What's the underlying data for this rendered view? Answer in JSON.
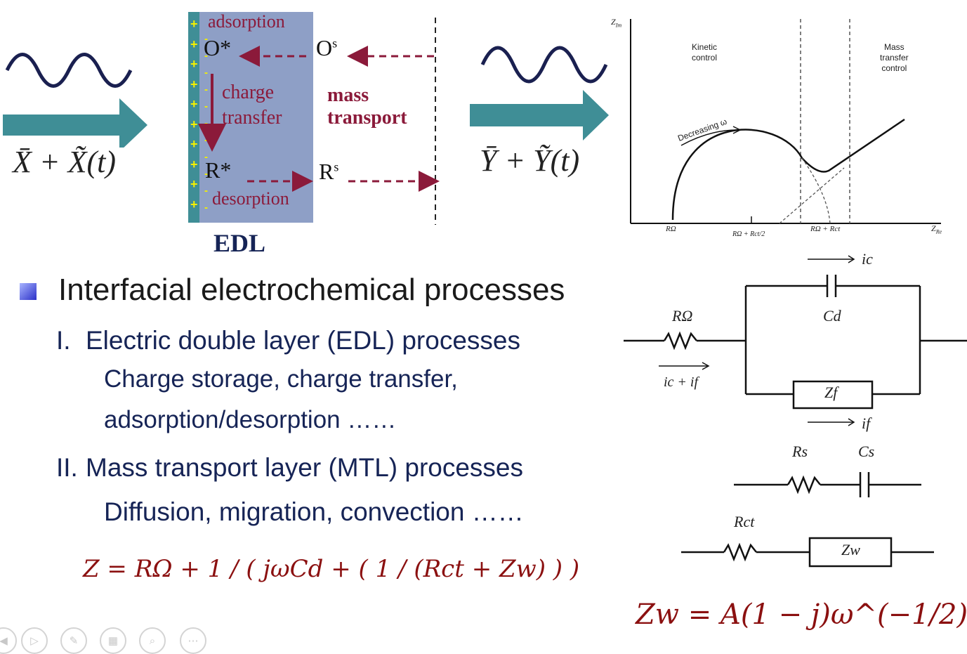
{
  "input_signal": {
    "label_html": "X̄ + X̃(t)"
  },
  "output_signal": {
    "label_html": "Ȳ + Ỹ(t)"
  },
  "edl": {
    "adsorption": "adsorption",
    "o_star": "O*",
    "o_s": "O",
    "o_s_sup": "s",
    "charge": "charge",
    "transfer": "transfer",
    "mass": "mass",
    "transport": "transport",
    "r_star": "R*",
    "r_s": "R",
    "r_s_sup": "s",
    "desorption": "desorption",
    "caption": "EDL",
    "colors": {
      "box": "#8e9fc6",
      "electrode": "#3f8e96",
      "text": "#8b1a3a"
    }
  },
  "nyquist": {
    "y_axis": "Z",
    "y_axis_sub": "Im",
    "x_axis": "Z",
    "x_axis_sub": "Re",
    "kinetic_line1": "Kinetic",
    "kinetic_line2": "control",
    "mass_line1": "Mass",
    "mass_line2": "transfer",
    "mass_line3": "control",
    "decreasing": "Decreasing ω",
    "tick_r_omega": "RΩ",
    "tick_mid": "RΩ + Rct/2",
    "tick_sum": "RΩ + Rct"
  },
  "bullets": {
    "main": "Interfacial electrochemical processes",
    "i_numeral": "I.",
    "i_title": "Electric double layer (EDL) processes",
    "i_line1": "Charge storage, charge transfer,",
    "i_line2": "adsorption/desorption ……",
    "ii_numeral": "II.",
    "ii_title": "Mass transport layer (MTL) processes",
    "ii_line1": "Diffusion, migration, convection ……"
  },
  "circuit": {
    "r_omega": "RΩ",
    "cd": "Cd",
    "zf": "Zf",
    "ic": "ic",
    "if": "if",
    "icf": "ic + if",
    "rs": "Rs",
    "cs": "Cs",
    "rct": "Rct",
    "zw": "Zw"
  },
  "equations": {
    "z_main": "Z = RΩ + 1 / ( jωCd + ( 1 / (Rct + Zw) ) )",
    "zw_eq": "Zw = A(1 − j)ω^(−1/2)"
  },
  "player_controls": [
    "prev",
    "play",
    "pen",
    "slides",
    "zoom",
    "more"
  ]
}
